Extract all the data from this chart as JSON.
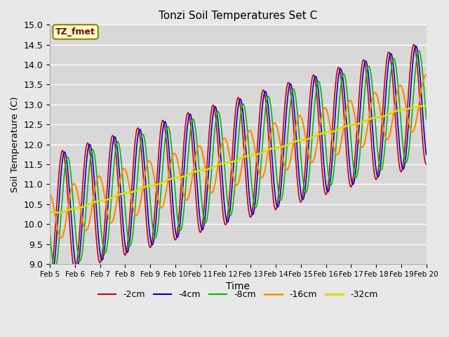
{
  "title": "Tonzi Soil Temperatures Set C",
  "xlabel": "Time",
  "ylabel": "Soil Temperature (C)",
  "ylim": [
    9.0,
    15.0
  ],
  "yticks": [
    9.0,
    9.5,
    10.0,
    10.5,
    11.0,
    11.5,
    12.0,
    12.5,
    13.0,
    13.5,
    14.0,
    14.5,
    15.0
  ],
  "xtick_labels": [
    "Feb 5",
    "Feb 6",
    "Feb 7",
    "Feb 8",
    "Feb 9",
    "Feb 10",
    "Feb 11",
    "Feb 12",
    "Feb 13",
    "Feb 14",
    "Feb 15",
    "Feb 16",
    "Feb 17",
    "Feb 18",
    "Feb 19",
    "Feb 20"
  ],
  "series_colors": {
    "-2cm": "#cc0000",
    "-4cm": "#0000cc",
    "-8cm": "#00bb00",
    "-16cm": "#ff8800",
    "-32cm": "#dddd00"
  },
  "series_lw": {
    "-2cm": 1.2,
    "-4cm": 1.2,
    "-8cm": 1.2,
    "-16cm": 1.5,
    "-32cm": 2.0
  },
  "annotation_text": "TZ_fmet",
  "annotation_color": "#880000",
  "annotation_bg": "#ffffcc",
  "annotation_border": "#888800",
  "background_color": "#e8e8e8",
  "plot_bg_color": "#d8d8d8",
  "grid_color": "#ffffff",
  "legend_labels": [
    "-2cm",
    "-4cm",
    "-8cm",
    "-16cm",
    "-32cm"
  ]
}
